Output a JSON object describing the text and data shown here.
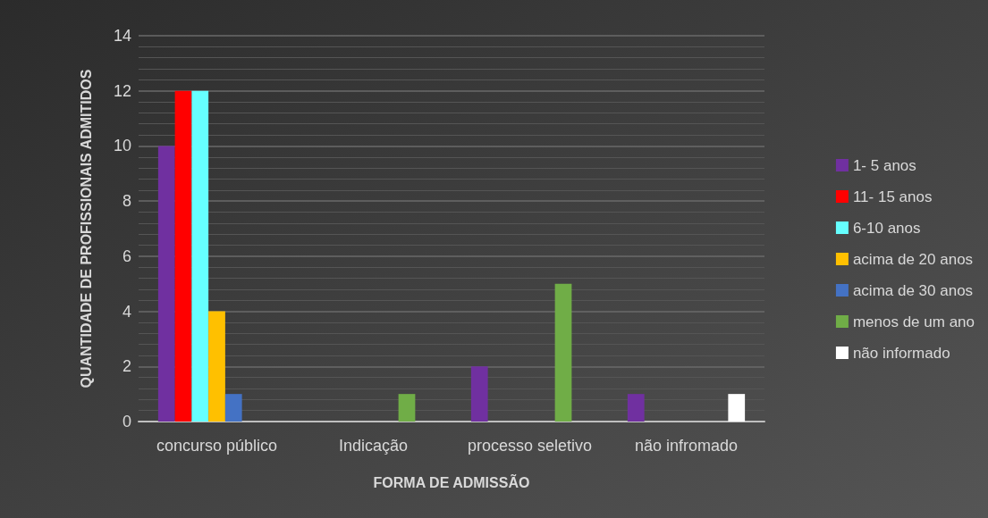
{
  "chart_data": {
    "type": "bar",
    "xlabel": "FORMA DE ADMISSÃO",
    "ylabel": "QUANTIDADE DE PROFISSIONAIS ADMITIDOS",
    "categories": [
      "concurso público",
      "Indicação",
      "processo seletivo",
      "não infromado"
    ],
    "series": [
      {
        "name": "1- 5 anos",
        "color": "#7030a0",
        "values": [
          10,
          null,
          2,
          1
        ]
      },
      {
        "name": "11- 15 anos",
        "color": "#ff0000",
        "values": [
          12,
          null,
          null,
          null
        ]
      },
      {
        "name": "6-10 anos",
        "color": "#66ffff",
        "values": [
          12,
          null,
          null,
          null
        ]
      },
      {
        "name": "acima de 20 anos",
        "color": "#ffc000",
        "values": [
          4,
          null,
          null,
          null
        ]
      },
      {
        "name": "acima de 30 anos",
        "color": "#4472c4",
        "values": [
          1,
          null,
          null,
          null
        ]
      },
      {
        "name": "menos de um ano",
        "color": "#70ad47",
        "values": [
          null,
          1,
          5,
          null
        ]
      },
      {
        "name": "não informado",
        "color": "#ffffff",
        "values": [
          null,
          null,
          null,
          1
        ]
      }
    ],
    "ylim": [
      0,
      14
    ],
    "yticks": [
      0,
      2,
      4,
      6,
      8,
      10,
      12,
      14
    ],
    "grid": "y",
    "legend": "right"
  }
}
